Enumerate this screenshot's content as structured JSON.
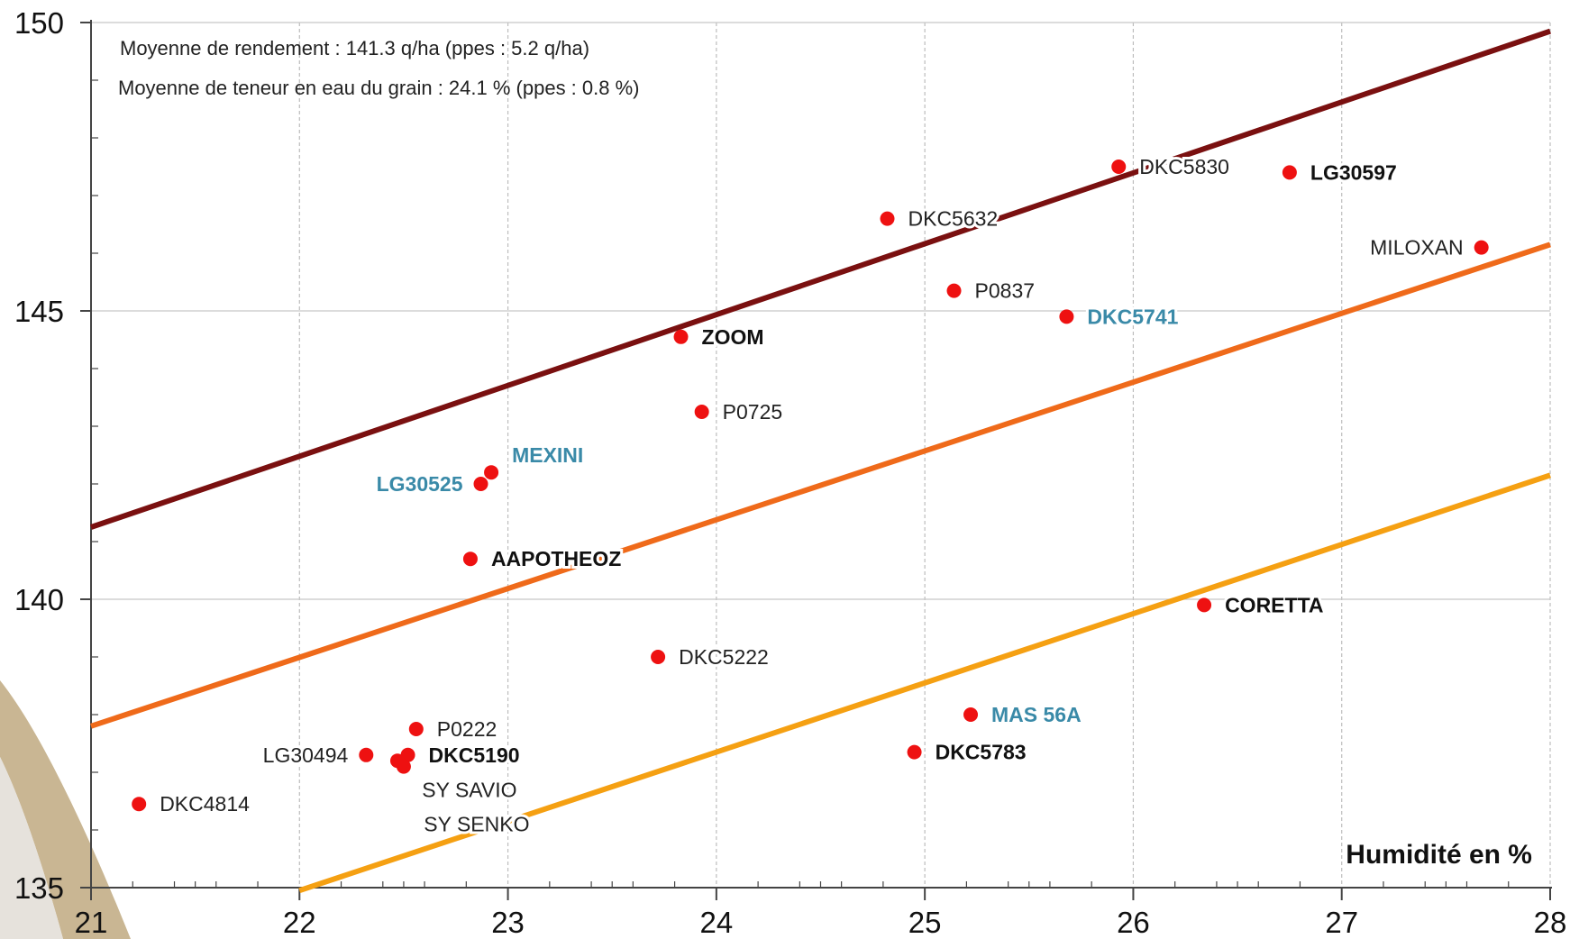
{
  "chart_data": {
    "type": "scatter",
    "title": "",
    "xlabel": "Humidité en %",
    "ylabel": "",
    "xlim": [
      21,
      28
    ],
    "ylim": [
      135,
      150
    ],
    "x_ticks": [
      "21",
      "22",
      "23",
      "24",
      "25",
      "26",
      "27",
      "28"
    ],
    "y_ticks": [
      "135",
      "140",
      "145",
      "150"
    ],
    "grid": "vertical dashed, horizontal solid",
    "annotations": [
      "Moyenne de rendement : 141.3 q/ha  (ppes : 5.2 q/ha)",
      "Moyenne de teneur en eau du grain : 24.1 % (ppes : 0.8 %)"
    ],
    "point_color": "#ee1111",
    "points": [
      {
        "label": "DKC5830",
        "x": 25.93,
        "y": 147.5,
        "style": "normal",
        "color": "#222222"
      },
      {
        "label": "LG30597",
        "x": 26.75,
        "y": 147.4,
        "style": "bold",
        "color": "#111111"
      },
      {
        "label": "DKC5632",
        "x": 24.82,
        "y": 146.6,
        "style": "normal",
        "color": "#222222"
      },
      {
        "label": "MILOXAN",
        "x": 27.67,
        "y": 146.1,
        "style": "normal",
        "color": "#222222",
        "label_side": "left"
      },
      {
        "label": "P0837",
        "x": 25.14,
        "y": 145.35,
        "style": "normal",
        "color": "#222222"
      },
      {
        "label": "DKC5741",
        "x": 25.68,
        "y": 144.9,
        "style": "bold",
        "color": "#3a8aa8"
      },
      {
        "label": "ZOOM",
        "x": 23.83,
        "y": 144.55,
        "style": "bold",
        "color": "#111111"
      },
      {
        "label": "P0725",
        "x": 23.93,
        "y": 143.25,
        "style": "normal",
        "color": "#222222"
      },
      {
        "label": "MEXINI",
        "x": 22.92,
        "y": 142.2,
        "style": "bold",
        "color": "#3a8aa8",
        "label_side": "above-right"
      },
      {
        "label": "LG30525",
        "x": 22.87,
        "y": 142.0,
        "style": "bold",
        "color": "#3a8aa8",
        "label_side": "left"
      },
      {
        "label": "AAPOTHEOZ",
        "x": 22.82,
        "y": 140.7,
        "style": "bold",
        "color": "#111111"
      },
      {
        "label": "CORETTA",
        "x": 26.34,
        "y": 139.9,
        "style": "bold",
        "color": "#111111"
      },
      {
        "label": "DKC5222",
        "x": 23.72,
        "y": 139.0,
        "style": "normal",
        "color": "#222222"
      },
      {
        "label": "MAS 56A",
        "x": 25.22,
        "y": 138.0,
        "style": "bold",
        "color": "#3a8aa8"
      },
      {
        "label": "P0222",
        "x": 22.56,
        "y": 137.75,
        "style": "normal",
        "color": "#222222"
      },
      {
        "label": "DKC5783",
        "x": 24.95,
        "y": 137.35,
        "style": "bold",
        "color": "#111111"
      },
      {
        "label": "LG30494",
        "x": 22.32,
        "y": 137.3,
        "style": "normal",
        "color": "#222222",
        "label_side": "left"
      },
      {
        "label": "DKC5190",
        "x": 22.52,
        "y": 137.3,
        "style": "bold",
        "color": "#111111"
      },
      {
        "label": "",
        "x": 22.47,
        "y": 137.2,
        "style": "normal",
        "color": "#222222"
      },
      {
        "label": "SY SAVIO",
        "x": 22.5,
        "y": 137.1,
        "style": "normal",
        "color": "#222222",
        "label_side": "below"
      },
      {
        "label": "DKC4814",
        "x": 21.23,
        "y": 136.45,
        "style": "normal",
        "color": "#222222"
      }
    ],
    "extra_labels": [
      {
        "text": "SY SENKO",
        "x": 22.85,
        "y": 136.1
      }
    ],
    "lines": [
      {
        "x0": 21,
        "y0": 141.25,
        "x1": 28,
        "y1": 149.85,
        "color": "#7a1010",
        "width": 6
      },
      {
        "x0": 21,
        "y0": 137.8,
        "x1": 28,
        "y1": 146.15,
        "color": "#ef6a1a",
        "width": 6
      },
      {
        "x0": 22,
        "y0": 134.95,
        "x1": 28,
        "y1": 142.15,
        "color": "#f5a012",
        "width": 6
      }
    ],
    "background_swoosh_color": "#c9b693"
  }
}
